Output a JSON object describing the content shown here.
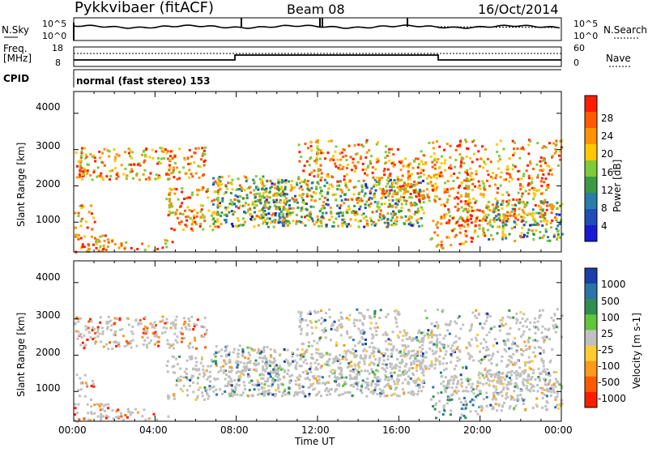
{
  "header": {
    "station": "Pykkvibaer (fitACF)",
    "beam": "Beam 08",
    "date": "16/Oct/2014"
  },
  "top_panels": {
    "nsky_label": "N.Sky",
    "nsky_ticks": [
      "10^5",
      "10^0"
    ],
    "nsearch_label": "N.Search",
    "nsearch_ticks": [
      "10^5",
      "10^0"
    ],
    "freq_label": "Freq.",
    "freq_unit": "[MHz]",
    "freq_ticks": [
      "18",
      "8"
    ],
    "nave_label": "Nave",
    "nave_ticks": [
      "60",
      "0"
    ],
    "cpid_label": "CPID",
    "cpid_value": "normal (fast stereo) 153"
  },
  "chart_data": [
    {
      "type": "heatmap",
      "name_panel": "power",
      "ylabel": "Slant Range [km]",
      "ylim": [
        180,
        4600
      ],
      "yticks": [
        "4000",
        "3000",
        "2000",
        "1000"
      ],
      "xlim": [
        0,
        24
      ],
      "colorbar_label": "Power [dB]",
      "colorbar_ticks": [
        "28",
        "24",
        "20",
        "16",
        "12",
        "8",
        "4"
      ],
      "colorbar_colors": [
        "#ff1d00",
        "#ff5a00",
        "#ff9300",
        "#ffc800",
        "#7fca3a",
        "#3a9a44",
        "#2a7da8",
        "#1f4fb4",
        "#1a1ad6"
      ]
    },
    {
      "type": "heatmap",
      "name_panel": "velocity",
      "ylabel": "Slant Range [km]",
      "ylim": [
        180,
        4600
      ],
      "yticks": [
        "4000",
        "3000",
        "2000",
        "1000"
      ],
      "xlim": [
        0,
        24
      ],
      "xlabel": "Time UT",
      "xticks": [
        "00:00",
        "04:00",
        "08:00",
        "12:00",
        "16:00",
        "20:00",
        "00:00"
      ],
      "colorbar_label": "Velocity [m s-1]",
      "colorbar_ticks": [
        "1000",
        "500",
        "100",
        "25",
        "-25",
        "-100",
        "-500",
        "-1000"
      ],
      "colorbar_colors": [
        "#1a3fa8",
        "#2a74a8",
        "#2f8f50",
        "#5fc63b",
        "#c0c0c0",
        "#ffcc33",
        "#ff9a1a",
        "#ff5a00",
        "#ff1d00"
      ]
    }
  ]
}
